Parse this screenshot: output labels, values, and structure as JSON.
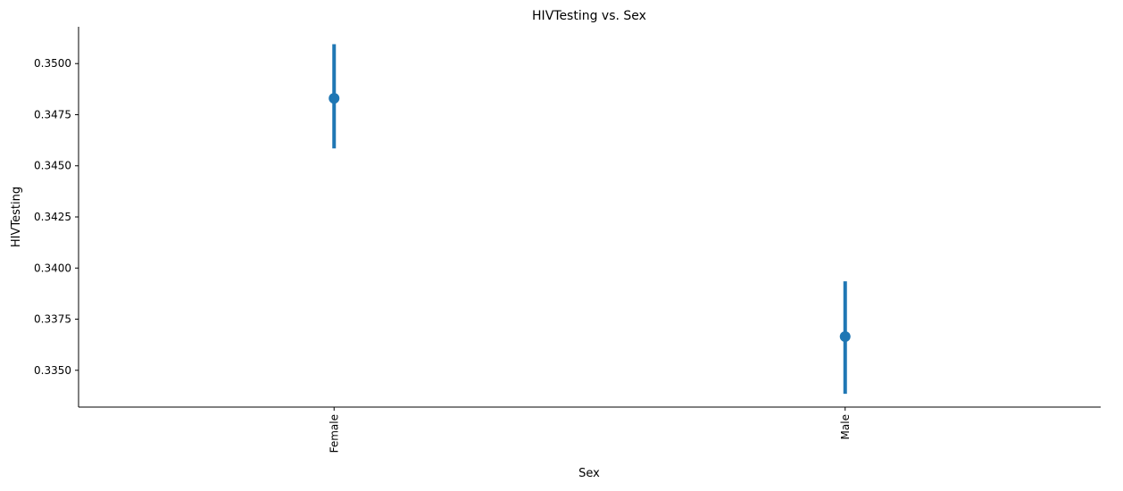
{
  "chart_data": {
    "type": "pointplot",
    "title": "HIVTesting vs. Sex",
    "xlabel": "Sex",
    "ylabel": "HIVTesting",
    "categories": [
      "Female",
      "Male"
    ],
    "values": [
      0.3483,
      0.33665
    ],
    "ci_low": [
      0.34585,
      0.33385
    ],
    "ci_high": [
      0.35095,
      0.33935
    ],
    "ylim": [
      0.3332,
      0.3518
    ],
    "yticks": [
      0.335,
      0.3375,
      0.34,
      0.3425,
      0.345,
      0.3475,
      0.35
    ],
    "ytick_labels": [
      "0.3350",
      "0.3375",
      "0.3400",
      "0.3425",
      "0.3450",
      "0.3475",
      "0.3500"
    ],
    "color": "#1f77b4",
    "grid": false,
    "xtick_rotation": "vertical"
  }
}
